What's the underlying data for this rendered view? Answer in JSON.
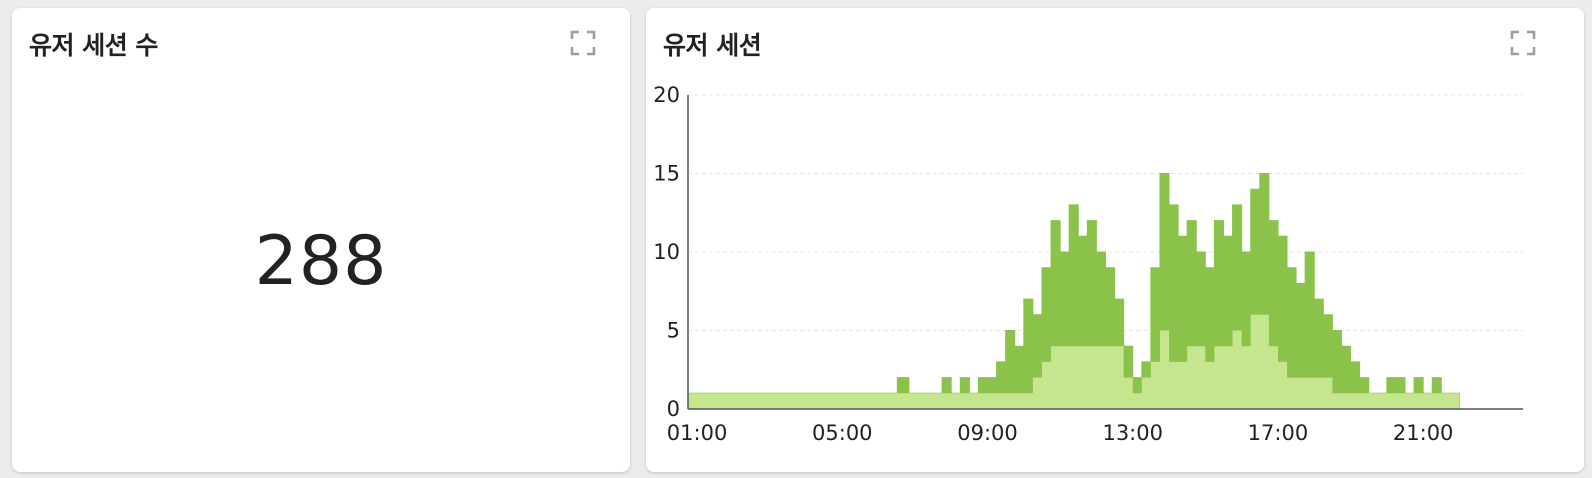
{
  "count_panel": {
    "title": "유저 세션 수",
    "value": "288",
    "expand_icon": "fullscreen-icon"
  },
  "chart_panel": {
    "title": "유저 세션",
    "expand_icon": "fullscreen-icon"
  },
  "colors": {
    "line": "#8bc34a",
    "fill": "#c5e68e",
    "grid": "#e3e3e3",
    "axis": "#555555",
    "icon": "#9e9e9e"
  },
  "chart_data": {
    "type": "area",
    "title": "유저 세션",
    "xlabel": "",
    "ylabel": "",
    "xlim": [
      "00:45",
      "23:45"
    ],
    "ylim": [
      0,
      20
    ],
    "grid": true,
    "x_tick_labels": [
      "01:00",
      "05:00",
      "09:00",
      "13:00",
      "17:00",
      "21:00"
    ],
    "y_tick_labels": [
      "0",
      "5",
      "10",
      "15",
      "20"
    ],
    "series": [
      {
        "x": [
          "00:45",
          "06:30",
          "06:31",
          "06:50",
          "07:30",
          "07:45",
          "08:00",
          "08:15",
          "08:30",
          "08:45",
          "09:00",
          "09:15",
          "09:30",
          "09:45",
          "10:00",
          "10:15",
          "10:30",
          "10:45",
          "11:00",
          "11:15",
          "11:30",
          "11:45",
          "12:00",
          "12:15",
          "12:30",
          "12:45",
          "13:00",
          "13:15",
          "13:30",
          "13:45",
          "14:00",
          "14:15",
          "14:30",
          "14:45",
          "15:00",
          "15:15",
          "15:30",
          "15:45",
          "16:00",
          "16:15",
          "16:30",
          "16:45",
          "17:00",
          "17:15",
          "17:30",
          "17:45",
          "18:00",
          "18:15",
          "18:30",
          "18:45",
          "19:00",
          "19:15",
          "19:30",
          "19:45",
          "20:00",
          "20:15",
          "20:30",
          "20:45",
          "21:00",
          "21:15",
          "21:30",
          "21:45"
        ],
        "upper": [
          1,
          1,
          2,
          1,
          1,
          2,
          1,
          2,
          1,
          2,
          2,
          3,
          5,
          4,
          7,
          6,
          9,
          12,
          10,
          13,
          11,
          12,
          10,
          9,
          7,
          4,
          2,
          3,
          9,
          15,
          13,
          11,
          12,
          10,
          9,
          12,
          11,
          13,
          10,
          14,
          15,
          12,
          11,
          9,
          8,
          10,
          7,
          6,
          5,
          4,
          3,
          2,
          1,
          1,
          2,
          2,
          1,
          2,
          1,
          2,
          1,
          1
        ],
        "lower": [
          1,
          1,
          1,
          1,
          1,
          1,
          1,
          1,
          1,
          1,
          1,
          1,
          1,
          1,
          1,
          2,
          3,
          4,
          4,
          4,
          4,
          4,
          4,
          4,
          4,
          2,
          1,
          2,
          3,
          5,
          3,
          3,
          4,
          4,
          3,
          4,
          4,
          5,
          4,
          6,
          6,
          4,
          3,
          2,
          2,
          2,
          2,
          2,
          1,
          1,
          1,
          1,
          1,
          1,
          1,
          1,
          1,
          1,
          1,
          1,
          1,
          1
        ]
      }
    ]
  }
}
